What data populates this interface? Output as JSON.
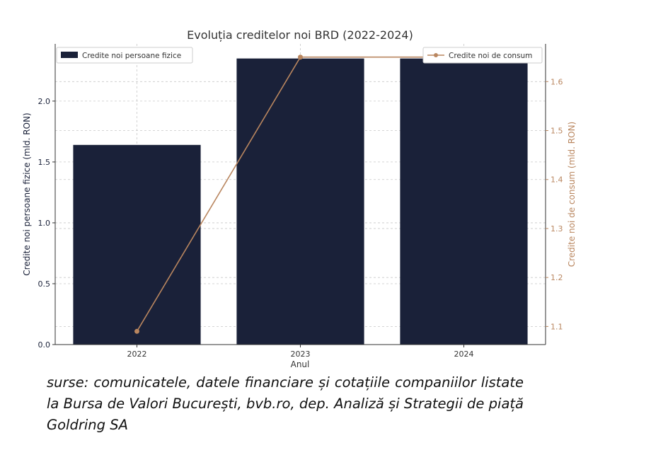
{
  "chart_data": {
    "type": "bar",
    "title": "Evoluția creditelor noi BRD (2022-2024)",
    "xlabel": "Anul",
    "categories": [
      "2022",
      "2023",
      "2024"
    ],
    "series": [
      {
        "name": "Credite noi persoane fizice",
        "type": "bar",
        "axis": "left",
        "values": [
          1.64,
          2.35,
          2.35
        ],
        "color": "#1a2139"
      },
      {
        "name": "Credite noi de consum",
        "type": "line",
        "axis": "right",
        "values": [
          1.09,
          1.65,
          1.65
        ],
        "color": "#b9865f"
      }
    ],
    "y_left": {
      "label": "Credite noi persoane fizice (mld. RON)",
      "range": [
        0,
        2.47
      ],
      "ticks": [
        "0.0",
        "0.5",
        "1.0",
        "1.5",
        "2.0"
      ]
    },
    "y_right": {
      "label": "Credite noi de consum (mld. RON)",
      "range": [
        1.063,
        1.677
      ],
      "ticks": [
        "1.1",
        "1.2",
        "1.3",
        "1.4",
        "1.5",
        "1.6"
      ]
    },
    "grid": true,
    "legend_left": "top-left",
    "legend_right": "top-right"
  },
  "caption": "surse: comunicatele, datele financiare și cotațiile companiilor listate la Bursa de Valori București, bvb.ro, dep. Analiză și Strategii de piață Goldring SA"
}
